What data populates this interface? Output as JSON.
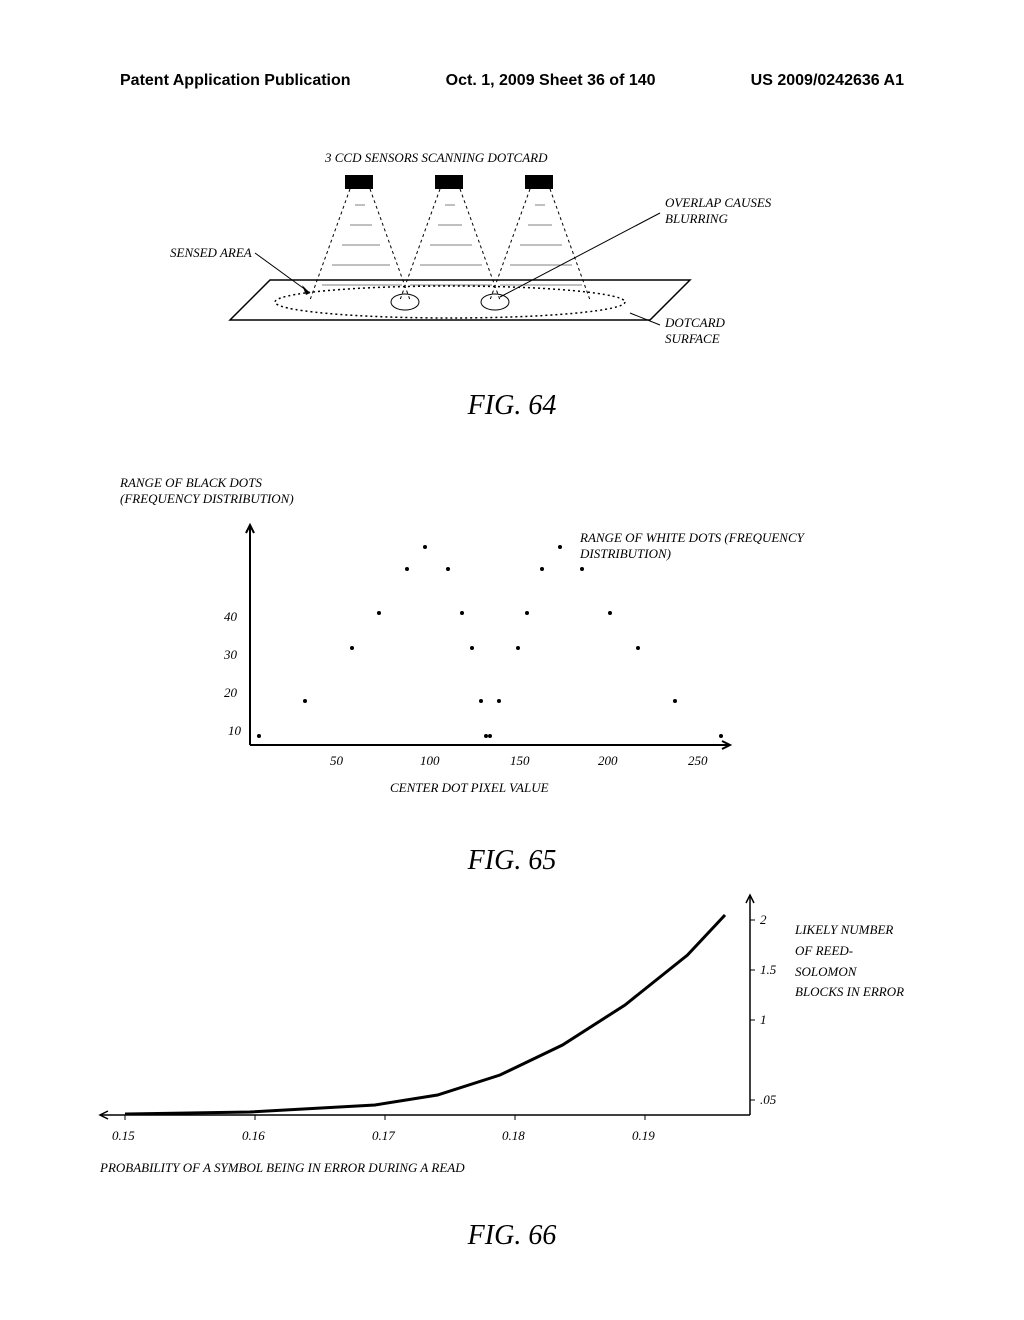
{
  "header": {
    "left": "Patent Application Publication",
    "center": "Oct. 1, 2009  Sheet 36 of 140",
    "right": "US 2009/0242636 A1"
  },
  "fig64": {
    "caption": "FIG. 64",
    "labels": {
      "sensors": "3 CCD SENSORS SCANNING DOTCARD",
      "overlap": "OVERLAP CAUSES BLURRING",
      "sensed": "SENSED AREA",
      "surface": "DOTCARD SURFACE"
    }
  },
  "fig65": {
    "caption": "FIG. 65",
    "labels": {
      "black": "RANGE OF BLACK DOTS (FREQUENCY DISTRIBUTION)",
      "white": "RANGE OF WHITE DOTS (FREQUENCY DISTRIBUTION)",
      "xaxis": "CENTER DOT PIXEL VALUE"
    },
    "y_ticks": [
      "10",
      "20",
      "30",
      "40"
    ],
    "x_ticks": [
      "50",
      "100",
      "150",
      "200",
      "250"
    ],
    "xlim": [
      0,
      260
    ],
    "ylim": [
      0,
      50
    ],
    "black_series": [
      {
        "x": 5,
        "y": 2
      },
      {
        "x": 30,
        "y": 10
      },
      {
        "x": 55,
        "y": 22
      },
      {
        "x": 70,
        "y": 30
      },
      {
        "x": 85,
        "y": 40
      },
      {
        "x": 95,
        "y": 45
      },
      {
        "x": 107,
        "y": 40
      },
      {
        "x": 115,
        "y": 30
      },
      {
        "x": 120,
        "y": 22
      },
      {
        "x": 125,
        "y": 10
      },
      {
        "x": 128,
        "y": 2
      }
    ],
    "white_series": [
      {
        "x": 130,
        "y": 2
      },
      {
        "x": 135,
        "y": 10
      },
      {
        "x": 145,
        "y": 22
      },
      {
        "x": 150,
        "y": 30
      },
      {
        "x": 158,
        "y": 40
      },
      {
        "x": 168,
        "y": 45
      },
      {
        "x": 180,
        "y": 40
      },
      {
        "x": 195,
        "y": 30
      },
      {
        "x": 210,
        "y": 22
      },
      {
        "x": 230,
        "y": 10
      },
      {
        "x": 255,
        "y": 2
      }
    ]
  },
  "fig66": {
    "caption": "FIG. 66",
    "labels": {
      "xaxis": "PROBABILITY OF A SYMBOL BEING IN ERROR DURING A READ",
      "yaxis": "LIKELY NUMBER OF REED-SOLOMON BLOCKS IN ERROR"
    },
    "x_ticks": [
      "0.15",
      "0.16",
      "0.17",
      "0.18",
      "0.19"
    ],
    "y_ticks": [
      ".05",
      "1",
      "1.5",
      "2"
    ],
    "xlim": [
      0.15,
      0.2
    ],
    "ylim": [
      0,
      2.2
    ],
    "curve": [
      {
        "x": 0.15,
        "y": 0.01
      },
      {
        "x": 0.16,
        "y": 0.03
      },
      {
        "x": 0.17,
        "y": 0.1
      },
      {
        "x": 0.175,
        "y": 0.2
      },
      {
        "x": 0.18,
        "y": 0.4
      },
      {
        "x": 0.185,
        "y": 0.7
      },
      {
        "x": 0.19,
        "y": 1.1
      },
      {
        "x": 0.195,
        "y": 1.6
      },
      {
        "x": 0.198,
        "y": 2.0
      }
    ]
  }
}
